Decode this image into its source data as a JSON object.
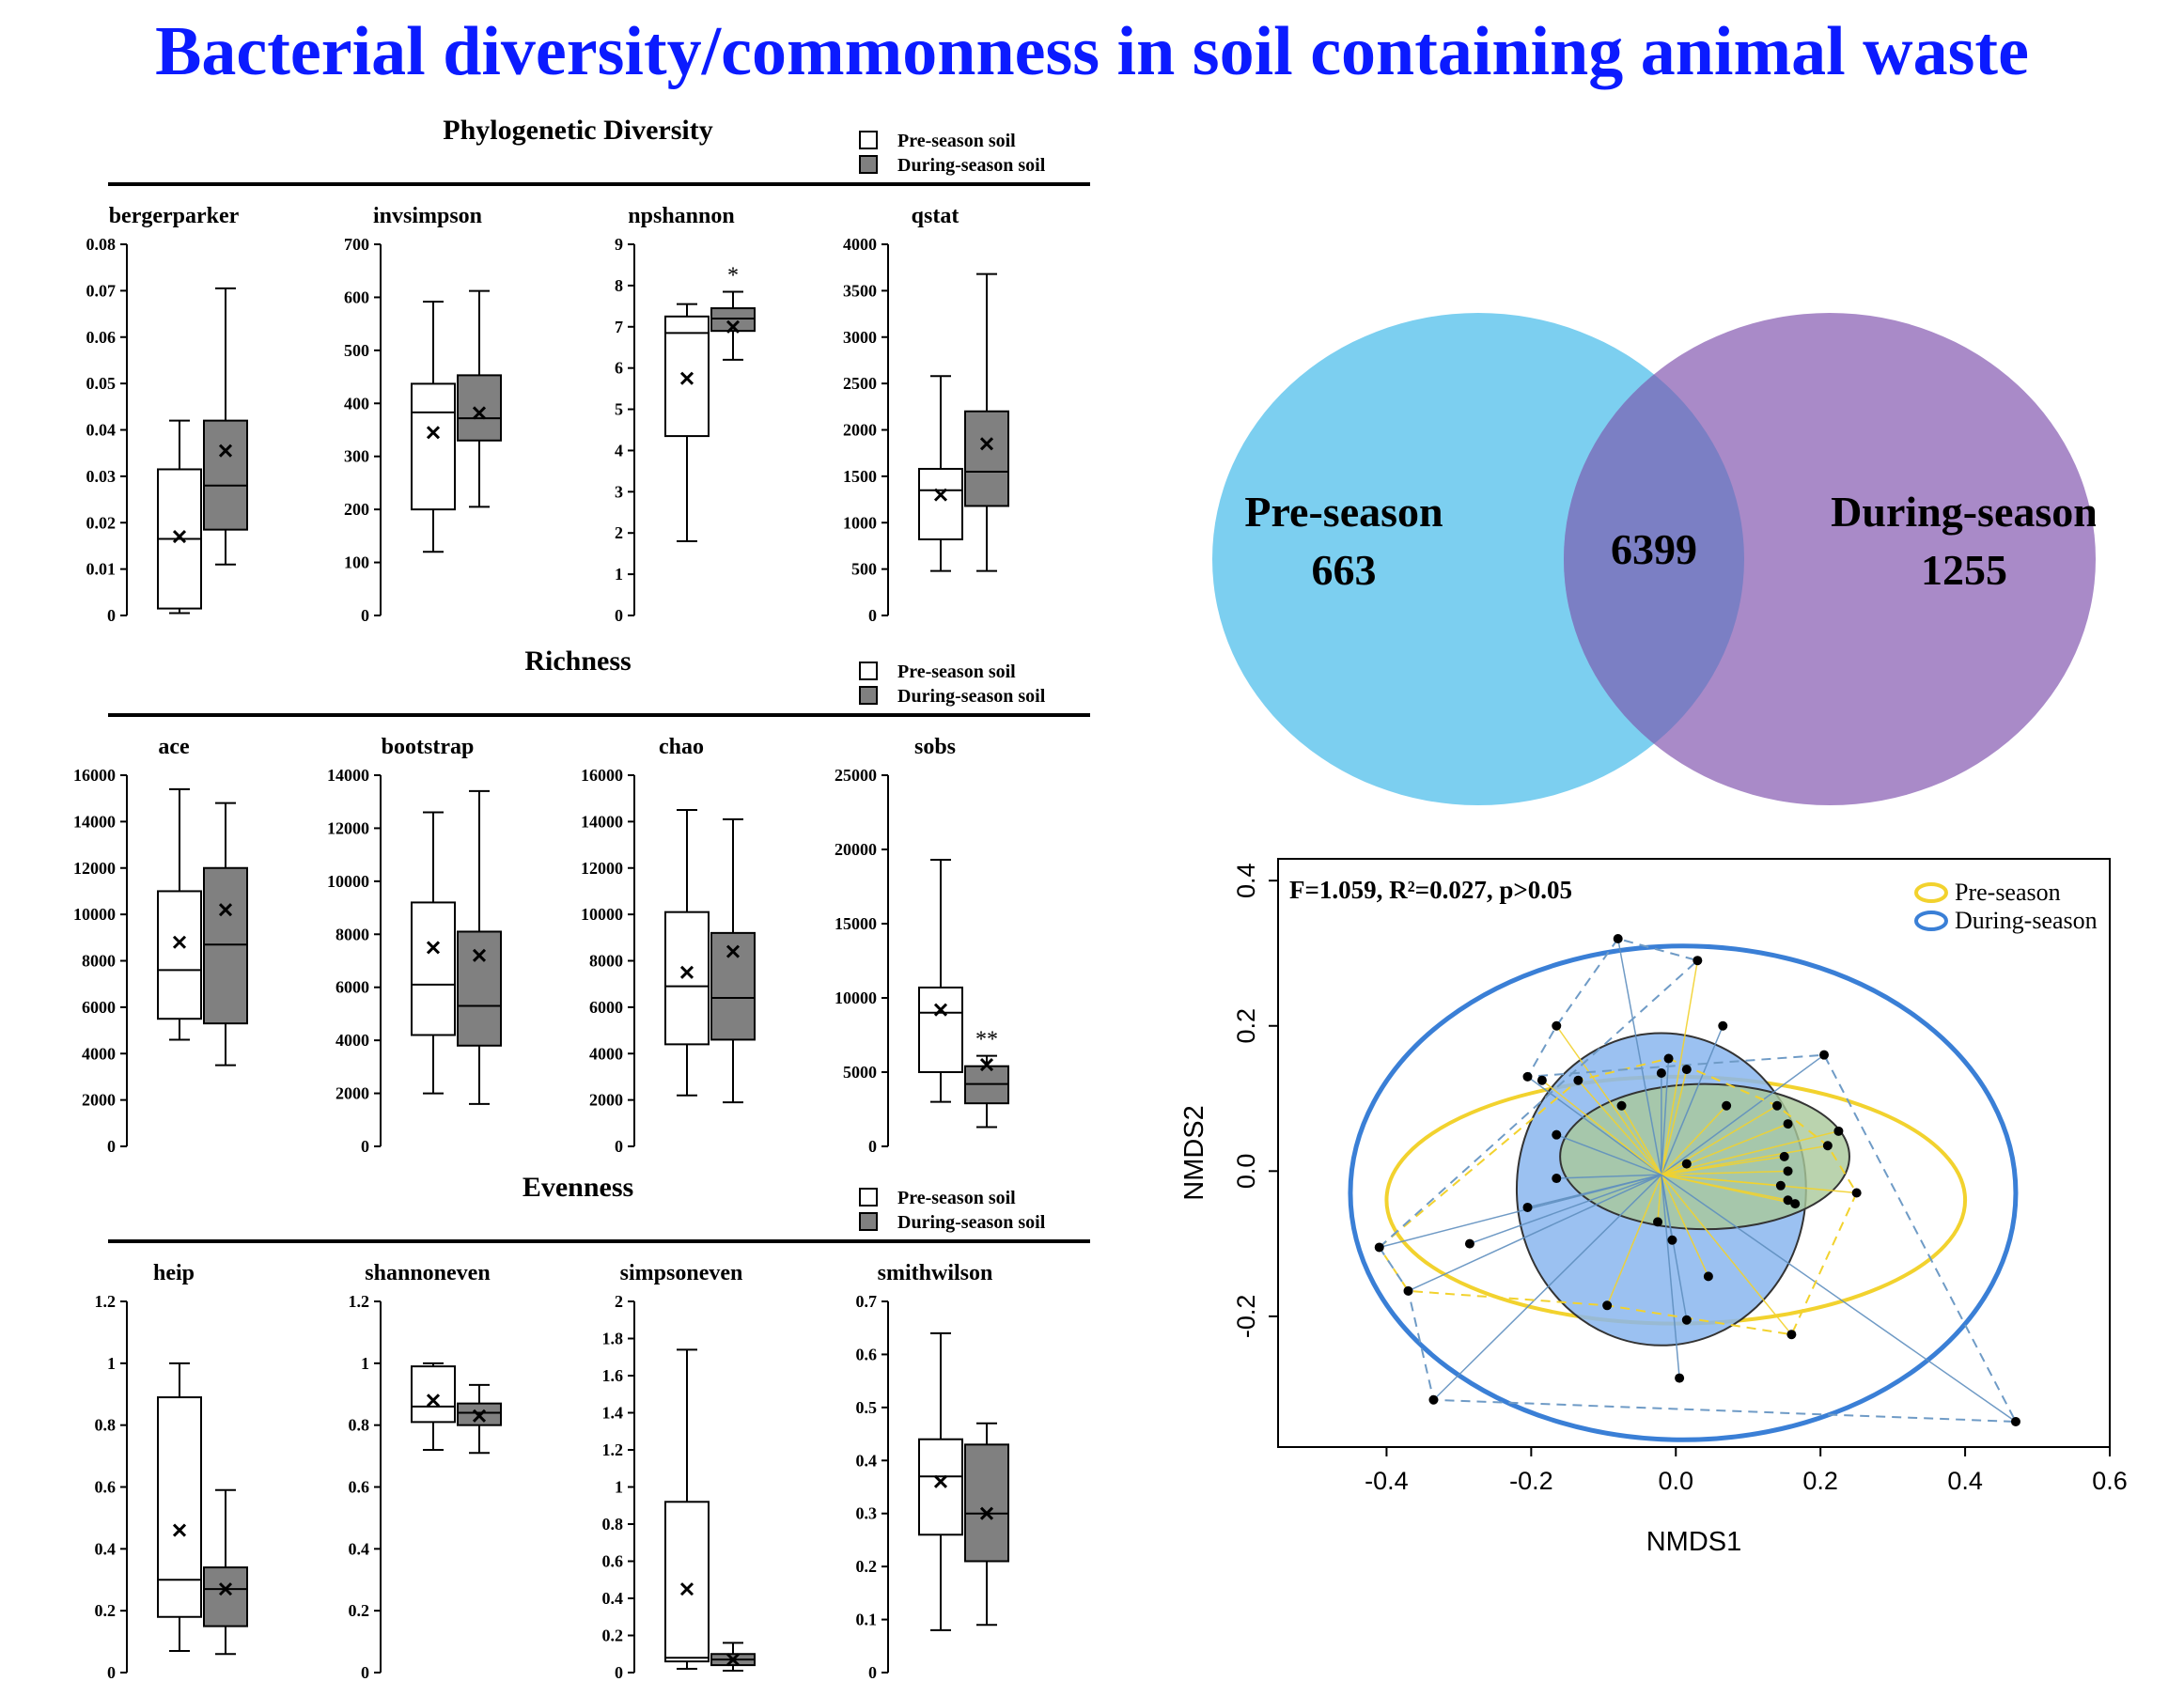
{
  "title": "Bacterial diversity/commonness in soil containing animal waste",
  "colors": {
    "title": "#0b1bff",
    "pre_box": "#ffffff",
    "during_box": "#808080",
    "venn_left": "#7ccff0",
    "venn_right": "#a98ac8",
    "venn_overlap": "#7b7fc4",
    "pre_season": "#f2d22e",
    "during_season": "#3a7fd6"
  },
  "boxplot_groups": [
    {
      "title": "Phylogenetic Diversity",
      "legend": [
        "Pre-season soil",
        "During-season soil"
      ],
      "panels": [
        {
          "name": "bergerparker",
          "yticks": [
            "0",
            "0.01",
            "0.02",
            "0.03",
            "0.04",
            "0.05",
            "0.06",
            "0.07",
            "0.08"
          ],
          "ymax": 0.08,
          "boxes": [
            {
              "min": 0.0005,
              "q1": 0.0015,
              "med": 0.0165,
              "q3": 0.0315,
              "max": 0.042,
              "mean": 0.017
            },
            {
              "min": 0.011,
              "q1": 0.0185,
              "med": 0.028,
              "q3": 0.042,
              "max": 0.0705,
              "mean": 0.0355
            }
          ],
          "marks": [
            "",
            ""
          ]
        },
        {
          "name": "invsimpson",
          "yticks": [
            "0",
            "100",
            "200",
            "300",
            "400",
            "500",
            "600",
            "700"
          ],
          "ymax": 700,
          "boxes": [
            {
              "min": 120,
              "q1": 200,
              "med": 383,
              "q3": 437,
              "max": 592,
              "mean": 345
            },
            {
              "min": 205,
              "q1": 330,
              "med": 372,
              "q3": 453,
              "max": 612,
              "mean": 382
            }
          ],
          "marks": [
            "",
            ""
          ]
        },
        {
          "name": "npshannon",
          "yticks": [
            "0",
            "1",
            "2",
            "3",
            "4",
            "5",
            "6",
            "7",
            "8",
            "9"
          ],
          "ymax": 9,
          "boxes": [
            {
              "min": 1.8,
              "q1": 4.35,
              "med": 6.85,
              "q3": 7.25,
              "max": 7.55,
              "mean": 5.75
            },
            {
              "min": 6.2,
              "q1": 6.9,
              "med": 7.2,
              "q3": 7.45,
              "max": 7.85,
              "mean": 7.0
            }
          ],
          "marks": [
            "",
            "*"
          ]
        },
        {
          "name": "qstat",
          "yticks": [
            "0",
            "500",
            "1000",
            "1500",
            "2000",
            "2500",
            "3000",
            "3500",
            "4000"
          ],
          "ymax": 4000,
          "boxes": [
            {
              "min": 480,
              "q1": 820,
              "med": 1350,
              "q3": 1580,
              "max": 2580,
              "mean": 1300
            },
            {
              "min": 480,
              "q1": 1180,
              "med": 1550,
              "q3": 2200,
              "max": 3680,
              "mean": 1850
            }
          ],
          "marks": [
            "",
            ""
          ]
        }
      ]
    },
    {
      "title": "Richness",
      "legend": [
        "Pre-season soil",
        "During-season soil"
      ],
      "panels": [
        {
          "name": "ace",
          "yticks": [
            "0",
            "2000",
            "4000",
            "6000",
            "8000",
            "10000",
            "12000",
            "14000",
            "16000"
          ],
          "ymax": 16000,
          "boxes": [
            {
              "min": 4600,
              "q1": 5500,
              "med": 7600,
              "q3": 11000,
              "max": 15400,
              "mean": 8800
            },
            {
              "min": 3500,
              "q1": 5300,
              "med": 8700,
              "q3": 12000,
              "max": 14800,
              "mean": 10200
            }
          ],
          "marks": [
            "",
            ""
          ]
        },
        {
          "name": "bootstrap",
          "yticks": [
            "0",
            "2000",
            "4000",
            "6000",
            "8000",
            "10000",
            "12000",
            "14000"
          ],
          "ymax": 14000,
          "boxes": [
            {
              "min": 2000,
              "q1": 4200,
              "med": 6100,
              "q3": 9200,
              "max": 12600,
              "mean": 7500
            },
            {
              "min": 1600,
              "q1": 3800,
              "med": 5300,
              "q3": 8100,
              "max": 13400,
              "mean": 7200
            }
          ],
          "marks": [
            "",
            ""
          ]
        },
        {
          "name": "chao",
          "yticks": [
            "0",
            "2000",
            "4000",
            "6000",
            "8000",
            "10000",
            "12000",
            "14000",
            "16000"
          ],
          "ymax": 16000,
          "boxes": [
            {
              "min": 2200,
              "q1": 4400,
              "med": 6900,
              "q3": 10100,
              "max": 14500,
              "mean": 7500
            },
            {
              "min": 1900,
              "q1": 4600,
              "med": 6400,
              "q3": 9200,
              "max": 14100,
              "mean": 8400
            }
          ],
          "marks": [
            "",
            ""
          ]
        },
        {
          "name": "sobs",
          "yticks": [
            "0",
            "5000",
            "10000",
            "15000",
            "20000",
            "25000"
          ],
          "ymax": 25000,
          "boxes": [
            {
              "min": 3000,
              "q1": 5000,
              "med": 9000,
              "q3": 10700,
              "max": 19300,
              "mean": 9200
            },
            {
              "min": 1300,
              "q1": 2900,
              "med": 4200,
              "q3": 5400,
              "max": 6100,
              "mean": 5500
            }
          ],
          "marks": [
            "",
            "**"
          ]
        }
      ]
    },
    {
      "title": "Evenness",
      "legend": [
        "Pre-season soil",
        "During-season soil"
      ],
      "panels": [
        {
          "name": "heip",
          "yticks": [
            "0",
            "0.2",
            "0.4",
            "0.6",
            "0.8",
            "1",
            "1.2"
          ],
          "ymax": 1.2,
          "boxes": [
            {
              "min": 0.07,
              "q1": 0.18,
              "med": 0.3,
              "q3": 0.89,
              "max": 1.0,
              "mean": 0.46
            },
            {
              "min": 0.06,
              "q1": 0.15,
              "med": 0.27,
              "q3": 0.34,
              "max": 0.59,
              "mean": 0.27
            }
          ],
          "marks": [
            "",
            ""
          ]
        },
        {
          "name": "shannoneven",
          "yticks": [
            "0",
            "0.2",
            "0.4",
            "0.6",
            "0.8",
            "1",
            "1.2"
          ],
          "ymax": 1.2,
          "boxes": [
            {
              "min": 0.72,
              "q1": 0.81,
              "med": 0.86,
              "q3": 0.99,
              "max": 1.0,
              "mean": 0.88
            },
            {
              "min": 0.71,
              "q1": 0.8,
              "med": 0.84,
              "q3": 0.87,
              "max": 0.93,
              "mean": 0.83
            }
          ],
          "marks": [
            "",
            ""
          ]
        },
        {
          "name": "simpsoneven",
          "yticks": [
            "0",
            "0.2",
            "0.4",
            "0.6",
            "0.8",
            "1",
            "1.2",
            "1.4",
            "1.6",
            "1.8",
            "2"
          ],
          "ymax": 2,
          "boxes": [
            {
              "min": 0.02,
              "q1": 0.06,
              "med": 0.08,
              "q3": 0.92,
              "max": 1.74,
              "mean": 0.45
            },
            {
              "min": 0.01,
              "q1": 0.04,
              "med": 0.07,
              "q3": 0.1,
              "max": 0.16,
              "mean": 0.07
            }
          ],
          "marks": [
            "",
            ""
          ]
        },
        {
          "name": "smithwilson",
          "yticks": [
            "0",
            "0.1",
            "0.2",
            "0.3",
            "0.4",
            "0.5",
            "0.6",
            "0.7"
          ],
          "ymax": 0.7,
          "boxes": [
            {
              "min": 0.08,
              "q1": 0.26,
              "med": 0.37,
              "q3": 0.44,
              "max": 0.64,
              "mean": 0.36
            },
            {
              "min": 0.09,
              "q1": 0.21,
              "med": 0.3,
              "q3": 0.43,
              "max": 0.47,
              "mean": 0.3
            }
          ],
          "marks": [
            "",
            ""
          ]
        }
      ]
    }
  ],
  "venn": {
    "left_label": "Pre-season",
    "left_value": "663",
    "overlap_value": "6399",
    "right_label": "During-season",
    "right_value": "1255"
  },
  "nmds": {
    "annotation": "F=1.059, R²=0.027, p>0.05",
    "legend": [
      "Pre-season",
      "During-season"
    ],
    "xlabel": "NMDS1",
    "ylabel": "NMDS2",
    "xlim": [
      -0.55,
      0.6
    ],
    "ylim": [
      -0.38,
      0.43
    ],
    "xticks": [
      "-0.4",
      "-0.2",
      "0.0",
      "0.2",
      "0.4",
      "0.6"
    ],
    "yticks": [
      "-0.2",
      "0.0",
      "0.2",
      "0.4"
    ],
    "centroid": [
      -0.02,
      -0.005
    ],
    "points": [
      [
        -0.08,
        0.32
      ],
      [
        0.03,
        0.29
      ],
      [
        -0.165,
        0.2
      ],
      [
        0.065,
        0.2
      ],
      [
        -0.205,
        0.13
      ],
      [
        -0.185,
        0.125
      ],
      [
        -0.135,
        0.125
      ],
      [
        -0.01,
        0.155
      ],
      [
        0.015,
        0.14
      ],
      [
        -0.02,
        0.135
      ],
      [
        -0.075,
        0.09
      ],
      [
        0.07,
        0.09
      ],
      [
        0.205,
        0.16
      ],
      [
        0.21,
        0.035
      ],
      [
        0.225,
        0.055
      ],
      [
        0.14,
        0.09
      ],
      [
        0.155,
        0.065
      ],
      [
        -0.165,
        0.05
      ],
      [
        0.15,
        0.02
      ],
      [
        0.155,
        0.0
      ],
      [
        0.015,
        0.01
      ],
      [
        -0.165,
        -0.01
      ],
      [
        0.145,
        -0.02
      ],
      [
        0.25,
        -0.03
      ],
      [
        0.155,
        -0.04
      ],
      [
        0.165,
        -0.045
      ],
      [
        -0.205,
        -0.05
      ],
      [
        -0.025,
        -0.07
      ],
      [
        -0.005,
        -0.095
      ],
      [
        -0.285,
        -0.1
      ],
      [
        -0.41,
        -0.105
      ],
      [
        0.045,
        -0.145
      ],
      [
        -0.37,
        -0.165
      ],
      [
        -0.095,
        -0.185
      ],
      [
        0.015,
        -0.205
      ],
      [
        0.16,
        -0.225
      ],
      [
        0.005,
        -0.285
      ],
      [
        -0.335,
        -0.315
      ],
      [
        0.47,
        -0.345
      ]
    ],
    "pre_hull_idx": [
      30,
      6,
      7,
      15,
      13,
      23,
      35,
      33,
      32,
      30
    ],
    "during_hull_idx": [
      30,
      1,
      0,
      2,
      4,
      12,
      38,
      37,
      32,
      30
    ]
  }
}
